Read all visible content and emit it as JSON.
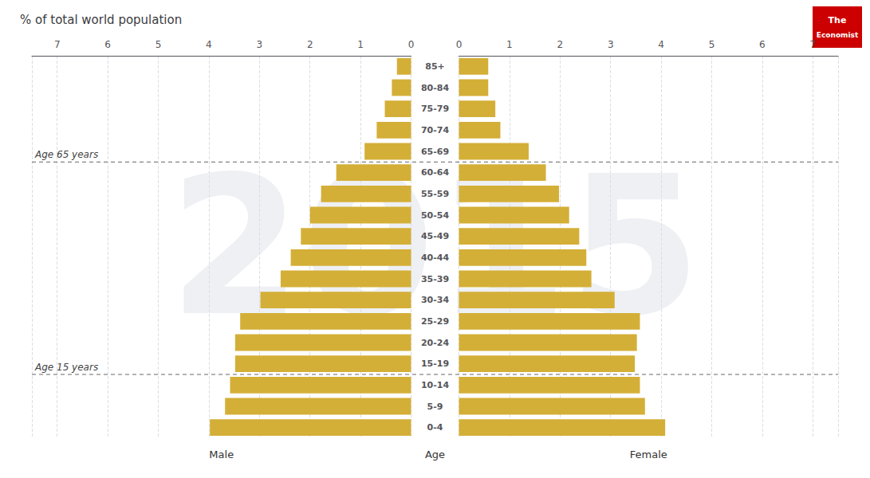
{
  "chart_data": {
    "type": "bar",
    "orientation": "horizontal",
    "title": "% of total world population",
    "watermark": "2015",
    "y_label": "Age",
    "categories": [
      "85+",
      "80-84",
      "75-79",
      "70-74",
      "65-69",
      "60-64",
      "55-59",
      "50-54",
      "45-49",
      "40-44",
      "35-39",
      "30-34",
      "25-29",
      "20-24",
      "15-19",
      "10-14",
      "5-9",
      "0-4"
    ],
    "series": [
      {
        "name": "Male",
        "color": "#D4AF37",
        "values": [
          0.28,
          0.38,
          0.52,
          0.68,
          0.92,
          1.48,
          1.78,
          2.0,
          2.18,
          2.38,
          2.58,
          2.98,
          3.38,
          3.48,
          3.48,
          3.58,
          3.68,
          3.98
        ]
      },
      {
        "name": "Female",
        "color": "#D4AF37",
        "values": [
          0.58,
          0.58,
          0.72,
          0.82,
          1.38,
          1.72,
          1.98,
          2.18,
          2.38,
          2.52,
          2.62,
          3.08,
          3.58,
          3.52,
          3.48,
          3.58,
          3.68,
          4.08
        ]
      }
    ],
    "xlim": [
      0,
      7.5
    ],
    "xticks": [
      0,
      1,
      2,
      3,
      4,
      5,
      6,
      7
    ],
    "grid": true,
    "annotations": [
      {
        "text": "Age 65 years",
        "between": [
          "65-69",
          "60-64"
        ]
      },
      {
        "text": "Age 15 years",
        "between": [
          "15-19",
          "10-14"
        ]
      }
    ],
    "logo": {
      "text": [
        "The",
        "Economist"
      ],
      "color": "#cc0000"
    }
  }
}
